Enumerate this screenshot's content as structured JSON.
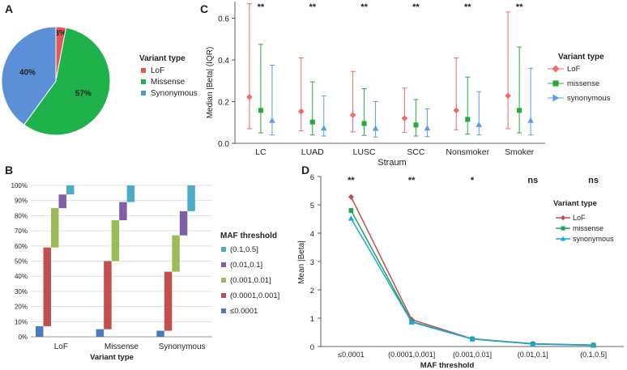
{
  "panels": {
    "a": "A",
    "b": "B",
    "c": "C",
    "d": "D"
  },
  "colors": {
    "lof": "#e05a5a",
    "missense": "#1fb14a",
    "synonymous": "#5b8fd6",
    "c_lof": "#f06a6a",
    "c_missense": "#2aaa3e",
    "c_synonymous": "#5b9bf0",
    "d_lof": "#c0504d",
    "d_missense": "#21a35a",
    "d_synonymous": "#1aa7e0",
    "b_le00001": "#4a7ac0",
    "b_00001_0001": "#c0504d",
    "b_0001_001": "#9bbb59",
    "b_001_01": "#7e5fa8",
    "b_01_05": "#4bacc6"
  },
  "chart_data": [
    {
      "panel": "A",
      "type": "pie",
      "legend_title": "Variant type",
      "slices": [
        {
          "label": "LoF",
          "value": 3,
          "text": "3%"
        },
        {
          "label": "Missense",
          "value": 57,
          "text": "57%"
        },
        {
          "label": "Synonymous",
          "value": 40,
          "text": "40%"
        }
      ]
    },
    {
      "panel": "B",
      "type": "bar",
      "subtype": "floating-waterfall",
      "xlabel": "Variant type",
      "legend_title": "MAF threshold",
      "categories": [
        "LoF",
        "Missense",
        "Synonymous"
      ],
      "yticks": [
        "0%",
        "10%",
        "20%",
        "30%",
        "40%",
        "50%",
        "60%",
        "70%",
        "80%",
        "90%",
        "100%"
      ],
      "ylim": [
        0,
        100
      ],
      "series": [
        {
          "name": "≤0.0001",
          "segments": [
            [
              0,
              7
            ],
            [
              0,
              5
            ],
            [
              0,
              4
            ]
          ]
        },
        {
          "name": "(0.0001,0.001]",
          "segments": [
            [
              7,
              59
            ],
            [
              5,
              50
            ],
            [
              4,
              43
            ]
          ]
        },
        {
          "name": "(0.001,0.01]",
          "segments": [
            [
              59,
              85
            ],
            [
              50,
              77
            ],
            [
              43,
              67
            ]
          ]
        },
        {
          "name": "(0.01,0.1]",
          "segments": [
            [
              85,
              94
            ],
            [
              77,
              89
            ],
            [
              67,
              83
            ]
          ]
        },
        {
          "name": "(0.1,0.5]",
          "segments": [
            [
              94,
              100
            ],
            [
              89,
              100
            ],
            [
              83,
              100
            ]
          ]
        }
      ],
      "legend_order": [
        "(0.1,0.5]",
        "(0.01,0.1]",
        "(0.001,0.01]",
        "(0.0001,0.001]",
        "≤0.0001"
      ]
    },
    {
      "panel": "C",
      "type": "scatter",
      "subtype": "point-with-range",
      "ylabel": "Median |Beta| (IQR)",
      "xlabel": "Straum",
      "legend_title": "Variant type",
      "categories": [
        "LC",
        "LUAD",
        "LUSC",
        "SCC",
        "Nonsmoker",
        "Smoker"
      ],
      "yticks": [
        "0.0",
        "0.2",
        "0.4",
        "0.6"
      ],
      "ylim": [
        0,
        0.68
      ],
      "significance": [
        "**",
        "**",
        "**",
        "**",
        "**",
        "**"
      ],
      "series": [
        {
          "name": "LoF",
          "marker": "diamond",
          "median": [
            0.222,
            0.153,
            0.135,
            0.12,
            0.158,
            0.228
          ],
          "low": [
            0.07,
            0.06,
            0.055,
            0.052,
            0.065,
            0.07
          ],
          "high": [
            0.67,
            0.41,
            0.345,
            0.265,
            0.41,
            0.63
          ]
        },
        {
          "name": "missense",
          "marker": "square",
          "median": [
            0.158,
            0.102,
            0.095,
            0.088,
            0.115,
            0.158
          ],
          "low": [
            0.05,
            0.04,
            0.038,
            0.035,
            0.045,
            0.05
          ],
          "high": [
            0.475,
            0.295,
            0.262,
            0.21,
            0.318,
            0.462
          ]
        },
        {
          "name": "synonymous",
          "marker": "triangle",
          "median": [
            0.11,
            0.073,
            0.072,
            0.073,
            0.09,
            0.11
          ],
          "low": [
            0.04,
            0.035,
            0.03,
            0.032,
            0.04,
            0.04
          ],
          "high": [
            0.375,
            0.228,
            0.2,
            0.165,
            0.248,
            0.36
          ]
        }
      ]
    },
    {
      "panel": "D",
      "type": "line",
      "ylabel": "Mean |Beta|",
      "xlabel": "MAF threshold",
      "legend_title": "Variant type",
      "categories": [
        "≤0.0001",
        "(0.0001,0.001]",
        "(0.001,0.01]",
        "(0.01,0.1]",
        "(0.1,0.5]"
      ],
      "yticks": [
        "0",
        "1",
        "2",
        "3",
        "4",
        "5",
        "6"
      ],
      "ylim": [
        0,
        6
      ],
      "significance": [
        "**",
        "**",
        "*",
        "ns",
        "ns"
      ],
      "series": [
        {
          "name": "LoF",
          "marker": "diamond",
          "values": [
            5.28,
            0.95,
            0.27,
            0.1,
            0.05
          ]
        },
        {
          "name": "missense",
          "marker": "square",
          "values": [
            4.8,
            0.88,
            0.27,
            0.09,
            0.05
          ]
        },
        {
          "name": "synonymous",
          "marker": "triangle",
          "values": [
            4.52,
            0.86,
            0.26,
            0.09,
            0.04
          ]
        }
      ]
    }
  ]
}
